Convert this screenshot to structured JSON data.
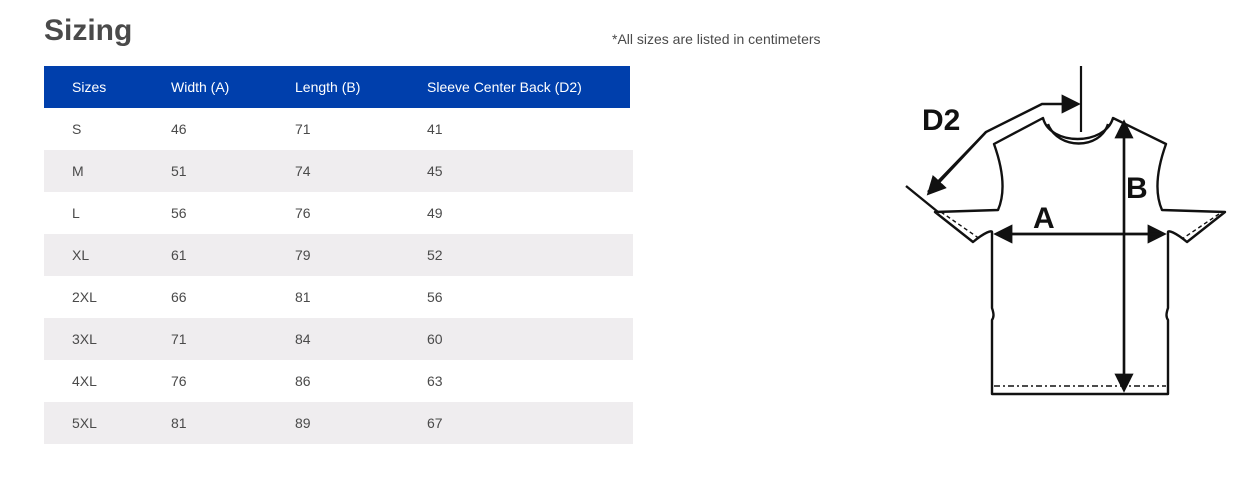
{
  "title": "Sizing",
  "note": "*All sizes are listed in centimeters",
  "table": {
    "headers": [
      "Sizes",
      "Width (A)",
      "Length (B)",
      "Sleeve Center Back (D2)"
    ],
    "rows": [
      [
        "S",
        "46",
        "71",
        "41"
      ],
      [
        "M",
        "51",
        "74",
        "45"
      ],
      [
        "L",
        "56",
        "76",
        "49"
      ],
      [
        "XL",
        "61",
        "79",
        "52"
      ],
      [
        "2XL",
        "66",
        "81",
        "56"
      ],
      [
        "3XL",
        "71",
        "84",
        "60"
      ],
      [
        "4XL",
        "76",
        "86",
        "63"
      ],
      [
        "5XL",
        "81",
        "89",
        "67"
      ]
    ]
  },
  "diagram": {
    "label_a": "A",
    "label_b": "B",
    "label_d2": "D2"
  }
}
